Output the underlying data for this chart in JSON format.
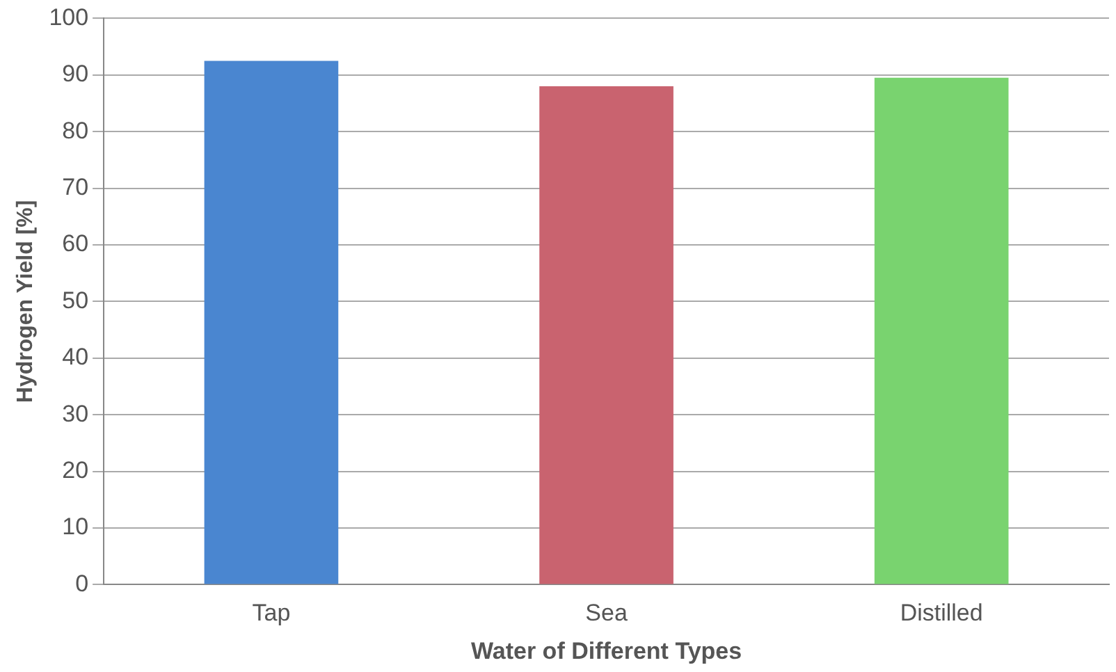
{
  "chart_data": {
    "type": "bar",
    "xlabel": "Water of Different Types",
    "ylabel": "Hydrogen Yield [%]",
    "categories": [
      "Tap",
      "Sea",
      "Distilled"
    ],
    "values": [
      92.5,
      88,
      89.5
    ],
    "colors": [
      "#4a86d0",
      "#c9636f",
      "#79d36f"
    ],
    "ylim": [
      0,
      100
    ],
    "yticks": [
      0,
      10,
      20,
      30,
      40,
      50,
      60,
      70,
      80,
      90,
      100
    ],
    "grid": "y"
  }
}
